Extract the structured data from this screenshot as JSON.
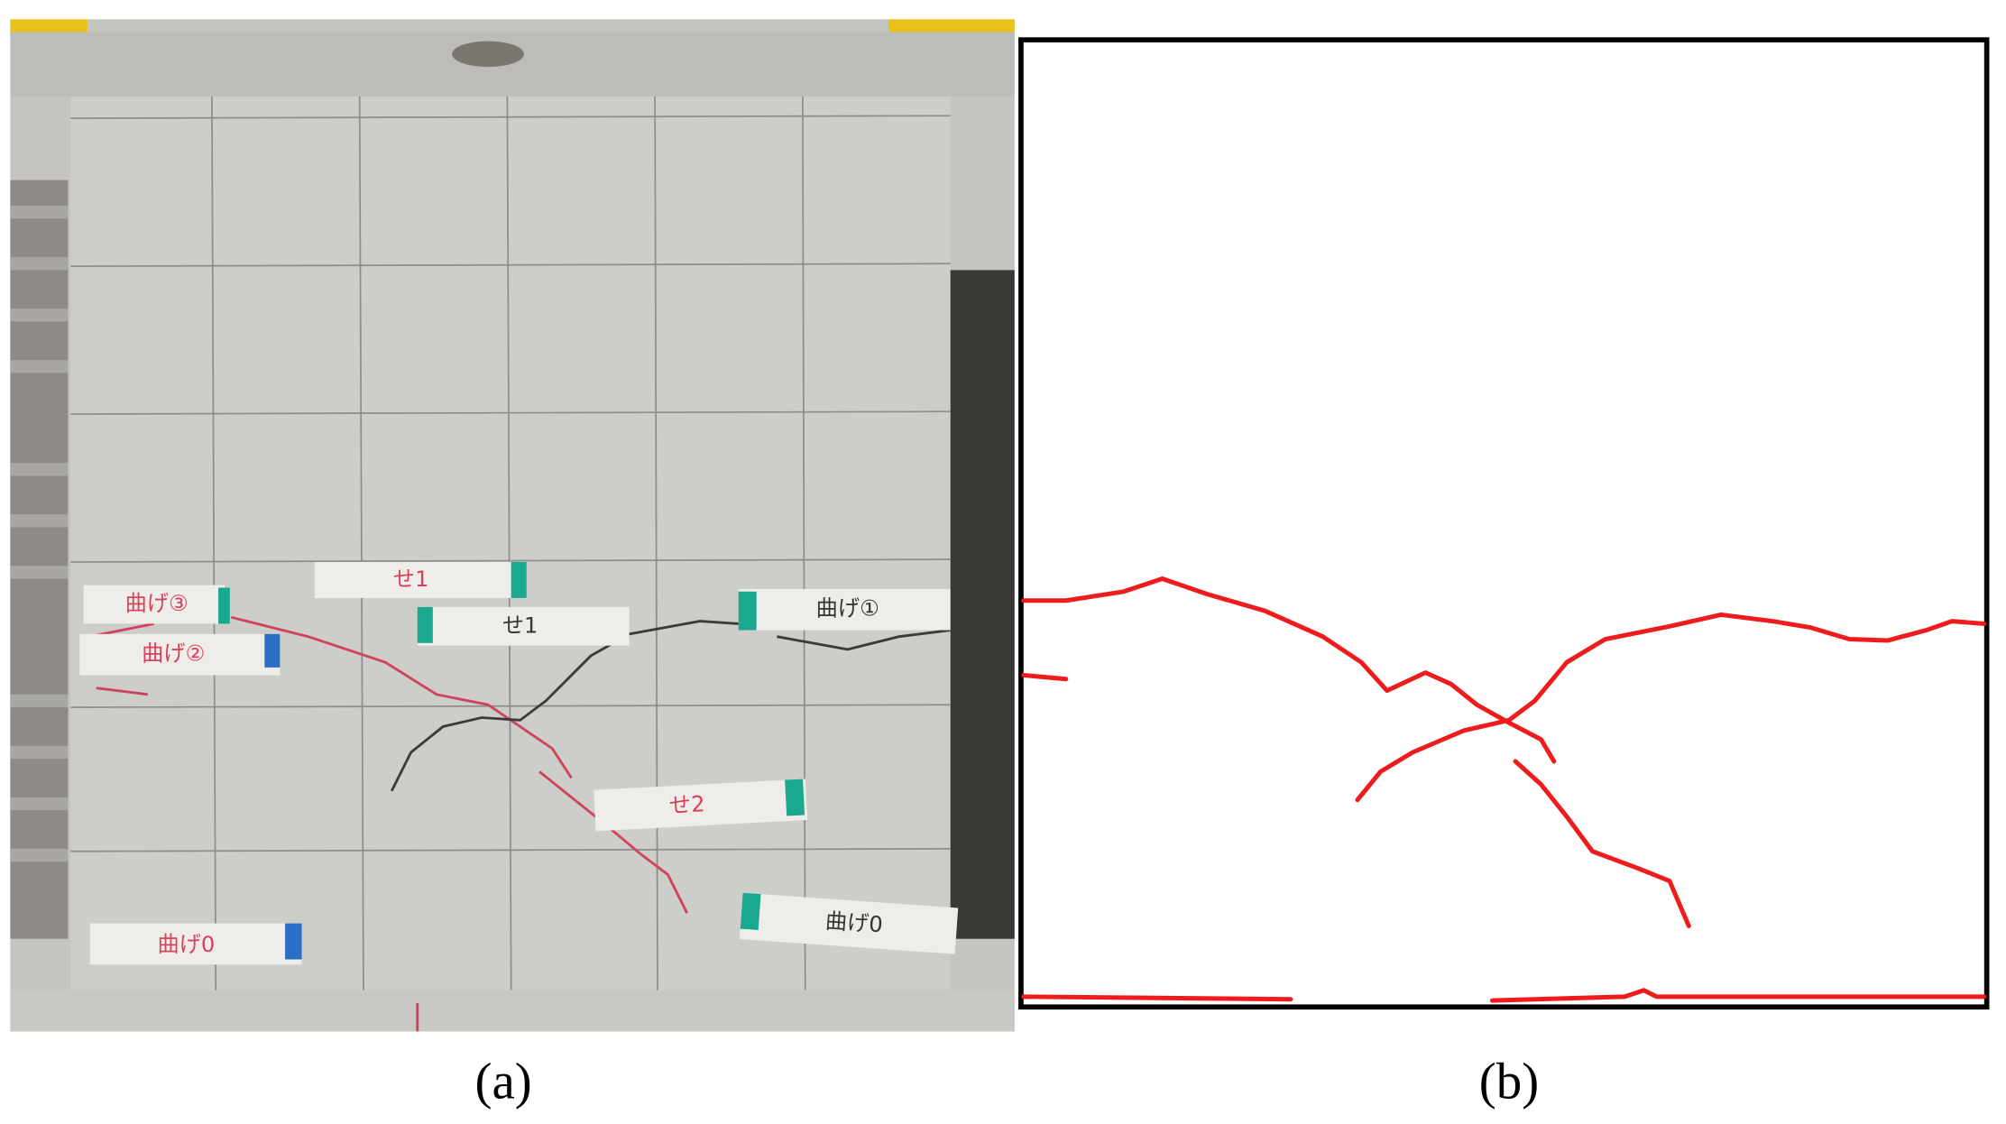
{
  "panel_a": {
    "caption": "(a)",
    "tags": [
      "曲げ③",
      "せ1",
      "せ1",
      "曲げ①",
      "曲げ②",
      "せ2",
      "曲げ0",
      "曲げ0"
    ]
  },
  "panel_b": {
    "caption": "(b)"
  }
}
